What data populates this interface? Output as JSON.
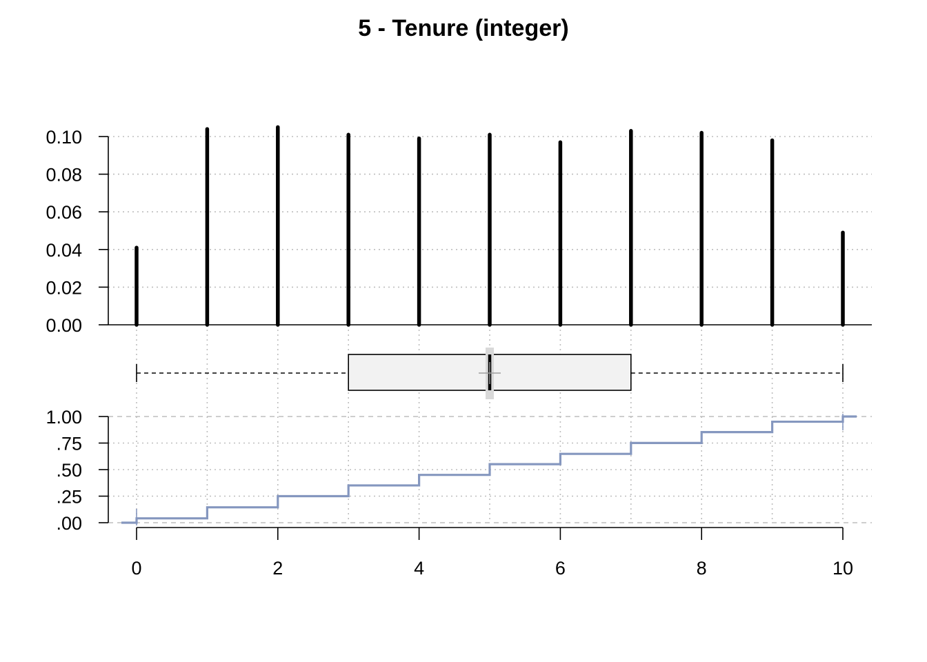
{
  "chart_data": {
    "type": "bar",
    "title": "5 - Tenure (integer)",
    "xlabel": "",
    "ylabel": "",
    "x": [
      0,
      1,
      2,
      3,
      4,
      5,
      6,
      7,
      8,
      9,
      10
    ],
    "x_ticks": [
      "0",
      "2",
      "4",
      "6",
      "8",
      "10"
    ],
    "xlim": [
      -0.4,
      10.4
    ],
    "grid": true,
    "panels": {
      "frequency": {
        "type": "bar",
        "y_ticks": [
          "0.00",
          "0.02",
          "0.04",
          "0.06",
          "0.08",
          "0.10"
        ],
        "ylim": [
          0,
          0.105
        ],
        "values": [
          0.041,
          0.104,
          0.105,
          0.101,
          0.099,
          0.101,
          0.097,
          0.103,
          0.102,
          0.098,
          0.049
        ]
      },
      "boxplot": {
        "type": "boxplot",
        "min": 0,
        "q1": 3,
        "median": 5,
        "q3": 7,
        "max": 10,
        "mean": 5.0
      },
      "ecdf": {
        "type": "line",
        "y_ticks": [
          "1.00",
          ".75",
          ".50",
          ".25",
          ".00"
        ],
        "ylim": [
          0,
          1
        ],
        "values": [
          0.041,
          0.145,
          0.25,
          0.351,
          0.45,
          0.551,
          0.648,
          0.751,
          0.853,
          0.951,
          1.0
        ]
      }
    },
    "colors": {
      "bars": "#000000",
      "box_fill": "#f2f2f2",
      "median_band": "#d9d9d9",
      "ecdf_line": "#8597bf",
      "grid": "#bdbdbd"
    }
  }
}
